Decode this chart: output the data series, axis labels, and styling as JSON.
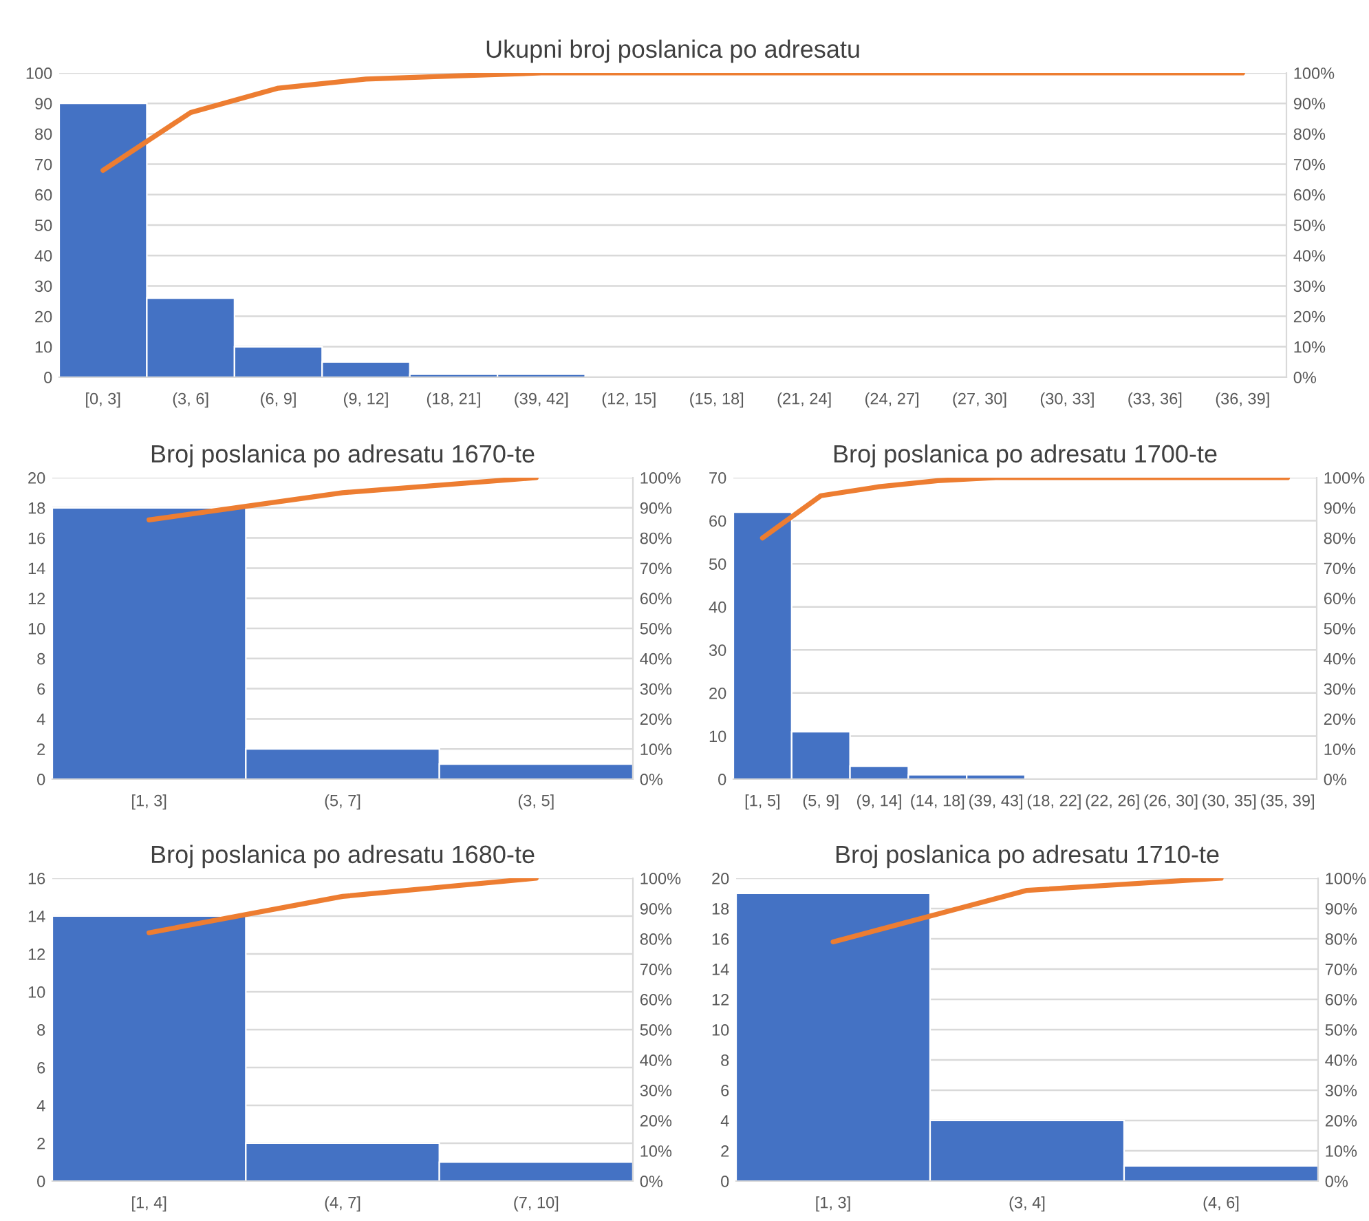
{
  "chart_data": [
    {
      "type": "bar",
      "title": "Ukupni broj poslanica po adresatu",
      "categories": [
        "[0, 3]",
        "(3, 6]",
        "(6, 9]",
        "(9, 12]",
        "(18, 21]",
        "(39, 42]",
        "(12, 15]",
        "(15, 18]",
        "(21, 24]",
        "(24, 27]",
        "(27, 30]",
        "(30, 33]",
        "(33, 36]",
        "(36, 39]"
      ],
      "series": [
        {
          "color": "#4472c4",
          "values": [
            90,
            26,
            10,
            5,
            1,
            1,
            0,
            0,
            0,
            0,
            0,
            0,
            0,
            0
          ]
        },
        {
          "type": "line",
          "axis": "y2",
          "color": "#ed7d31",
          "values": [
            68,
            87,
            95,
            98,
            99,
            100,
            100,
            100,
            100,
            100,
            100,
            100,
            100,
            100
          ]
        }
      ],
      "ylim": [
        0,
        100
      ],
      "yticks": [
        0,
        10,
        20,
        30,
        40,
        50,
        60,
        70,
        80,
        90,
        100
      ],
      "y2lim": [
        0,
        100
      ],
      "y2ticks": [
        {
          "value": 0,
          "label": "0%"
        },
        {
          "value": 10,
          "label": "10%"
        },
        {
          "value": 20,
          "label": "20%"
        },
        {
          "value": 30,
          "label": "30%"
        },
        {
          "value": 40,
          "label": "40%"
        },
        {
          "value": 50,
          "label": "50%"
        },
        {
          "value": 60,
          "label": "60%"
        },
        {
          "value": 70,
          "label": "70%"
        },
        {
          "value": 80,
          "label": "80%"
        },
        {
          "value": 90,
          "label": "90%"
        },
        {
          "value": 100,
          "label": "100%"
        }
      ],
      "grid": "y"
    },
    {
      "type": "bar",
      "title": "Broj poslanica po adresatu 1670-te",
      "categories": [
        "[1, 3]",
        "(5, 7]",
        "(3, 5]"
      ],
      "series": [
        {
          "color": "#4472c4",
          "values": [
            18,
            2,
            1
          ]
        },
        {
          "type": "line",
          "axis": "y2",
          "color": "#ed7d31",
          "values": [
            86,
            95,
            100
          ]
        }
      ],
      "ylim": [
        0,
        20
      ],
      "yticks": [
        0,
        2,
        4,
        6,
        8,
        10,
        12,
        14,
        16,
        18,
        20
      ],
      "y2lim": [
        0,
        100
      ],
      "y2ticks": [
        {
          "value": 0,
          "label": "0%"
        },
        {
          "value": 10,
          "label": "10%"
        },
        {
          "value": 20,
          "label": "20%"
        },
        {
          "value": 30,
          "label": "30%"
        },
        {
          "value": 40,
          "label": "40%"
        },
        {
          "value": 50,
          "label": "50%"
        },
        {
          "value": 60,
          "label": "60%"
        },
        {
          "value": 70,
          "label": "70%"
        },
        {
          "value": 80,
          "label": "80%"
        },
        {
          "value": 90,
          "label": "90%"
        },
        {
          "value": 100,
          "label": "100%"
        }
      ],
      "grid": "y"
    },
    {
      "type": "bar",
      "title": "Broj poslanica po adresatu 1700-te",
      "categories": [
        "[1, 5]",
        "(5, 9]",
        "(9, 14]",
        "(14, 18]",
        "(39, 43]",
        "(18, 22]",
        "(22, 26]",
        "(26, 30]",
        "(30, 35]",
        "(35, 39]"
      ],
      "series": [
        {
          "color": "#4472c4",
          "values": [
            62,
            11,
            3,
            1,
            1,
            0,
            0,
            0,
            0,
            0
          ]
        },
        {
          "type": "line",
          "axis": "y2",
          "color": "#ed7d31",
          "values": [
            80,
            94,
            97,
            99,
            100,
            100,
            100,
            100,
            100,
            100
          ]
        }
      ],
      "ylim": [
        0,
        70
      ],
      "yticks": [
        0,
        10,
        20,
        30,
        40,
        50,
        60,
        70
      ],
      "y2lim": [
        0,
        100
      ],
      "y2ticks": [
        {
          "value": 0,
          "label": "0%"
        },
        {
          "value": 10,
          "label": "10%"
        },
        {
          "value": 20,
          "label": "20%"
        },
        {
          "value": 30,
          "label": "30%"
        },
        {
          "value": 40,
          "label": "40%"
        },
        {
          "value": 50,
          "label": "50%"
        },
        {
          "value": 60,
          "label": "60%"
        },
        {
          "value": 70,
          "label": "70%"
        },
        {
          "value": 80,
          "label": "80%"
        },
        {
          "value": 90,
          "label": "90%"
        },
        {
          "value": 100,
          "label": "100%"
        }
      ],
      "grid": "y"
    },
    {
      "type": "bar",
      "title": "Broj poslanica po adresatu 1680-te",
      "categories": [
        "[1, 4]",
        "(4, 7]",
        "(7, 10]"
      ],
      "series": [
        {
          "color": "#4472c4",
          "values": [
            14,
            2,
            1
          ]
        },
        {
          "type": "line",
          "axis": "y2",
          "color": "#ed7d31",
          "values": [
            82,
            94,
            100
          ]
        }
      ],
      "ylim": [
        0,
        16
      ],
      "yticks": [
        0,
        2,
        4,
        6,
        8,
        10,
        12,
        14,
        16
      ],
      "y2lim": [
        0,
        100
      ],
      "y2ticks": [
        {
          "value": 0,
          "label": "0%"
        },
        {
          "value": 10,
          "label": "10%"
        },
        {
          "value": 20,
          "label": "20%"
        },
        {
          "value": 30,
          "label": "30%"
        },
        {
          "value": 40,
          "label": "40%"
        },
        {
          "value": 50,
          "label": "50%"
        },
        {
          "value": 60,
          "label": "60%"
        },
        {
          "value": 70,
          "label": "70%"
        },
        {
          "value": 80,
          "label": "80%"
        },
        {
          "value": 90,
          "label": "90%"
        },
        {
          "value": 100,
          "label": "100%"
        }
      ],
      "grid": "y"
    },
    {
      "type": "bar",
      "title": "Broj poslanica po adresatu 1710-te",
      "categories": [
        "[1, 3]",
        "(3, 4]",
        "(4, 6]"
      ],
      "series": [
        {
          "color": "#4472c4",
          "values": [
            19,
            4,
            1
          ]
        },
        {
          "type": "line",
          "axis": "y2",
          "color": "#ed7d31",
          "values": [
            79,
            96,
            100
          ]
        }
      ],
      "ylim": [
        0,
        20
      ],
      "yticks": [
        0,
        2,
        4,
        6,
        8,
        10,
        12,
        14,
        16,
        18,
        20
      ],
      "y2lim": [
        0,
        100
      ],
      "y2ticks": [
        {
          "value": 0,
          "label": "0%"
        },
        {
          "value": 10,
          "label": "10%"
        },
        {
          "value": 20,
          "label": "20%"
        },
        {
          "value": 30,
          "label": "30%"
        },
        {
          "value": 40,
          "label": "40%"
        },
        {
          "value": 50,
          "label": "50%"
        },
        {
          "value": 60,
          "label": "60%"
        },
        {
          "value": 70,
          "label": "70%"
        },
        {
          "value": 80,
          "label": "80%"
        },
        {
          "value": 90,
          "label": "90%"
        },
        {
          "value": 100,
          "label": "100%"
        }
      ],
      "grid": "y"
    }
  ]
}
